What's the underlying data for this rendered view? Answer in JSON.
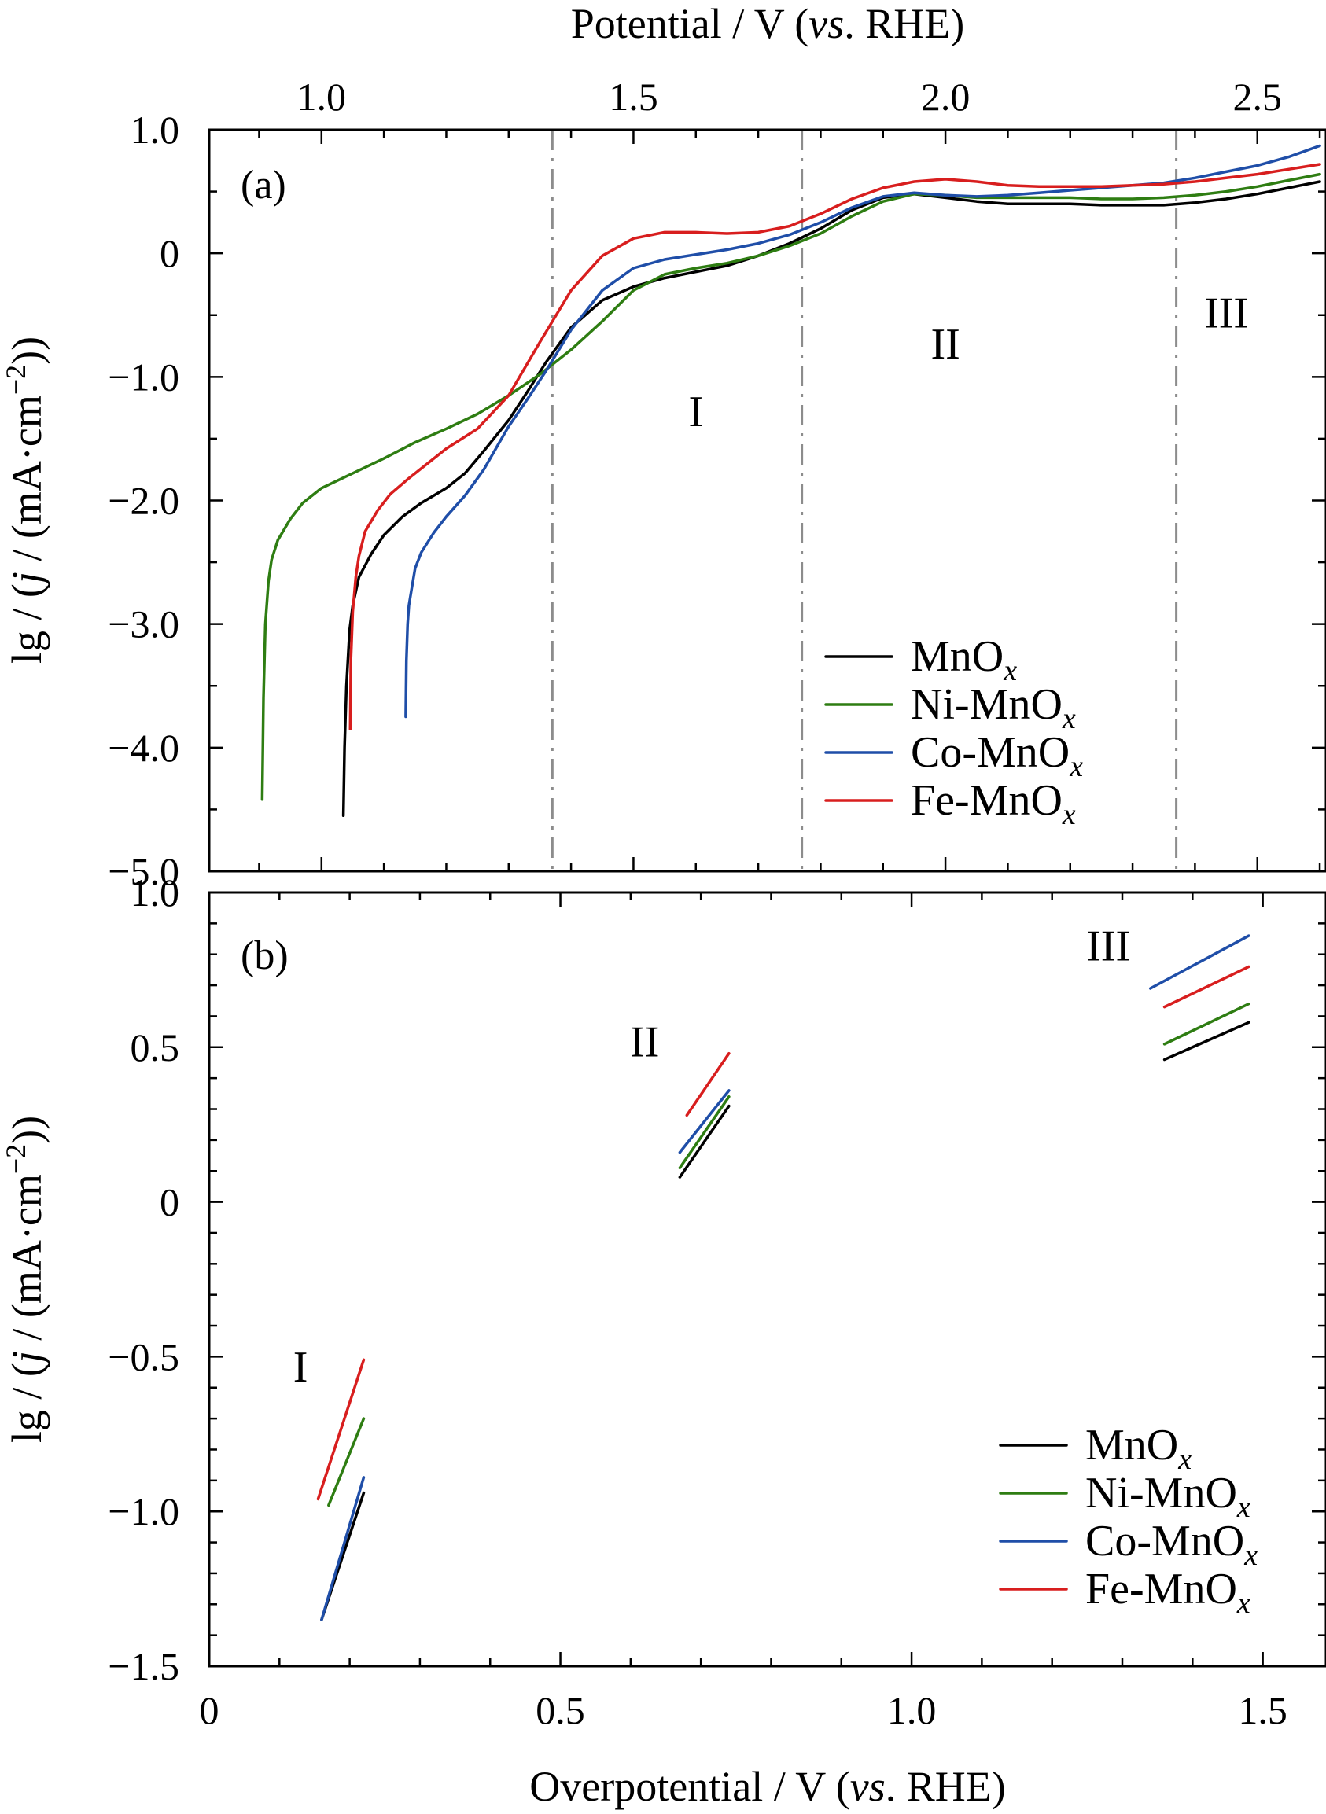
{
  "colors": {
    "MnOx": "#000000",
    "Ni-MnOx": "#2e7d12",
    "Co-MnOx": "#1f4ea8",
    "Fe-MnOx": "#d81e1e"
  },
  "chart_data": [
    {
      "panel": "(a)",
      "type": "line",
      "x_top_label_text": "Potential / V (",
      "x_top_label_italic": "vs",
      "x_top_label_tail": ". RHE)",
      "x_top_ticks": [
        "1.0",
        "1.5",
        "2.0",
        "2.5"
      ],
      "x_top_tick_values": [
        1.0,
        1.5,
        2.0,
        2.5
      ],
      "x_top_lim": [
        0.82,
        2.61
      ],
      "ylabel": "lg / (j / (mA·cm⁻²))",
      "ylim": [
        -5.0,
        1.0
      ],
      "y_ticks": [
        "1.0",
        "0",
        "−1.0",
        "−2.0",
        "−3.0",
        "−4.0",
        "−5.0"
      ],
      "y_tick_values": [
        1.0,
        0,
        -1.0,
        -2.0,
        -3.0,
        -4.0,
        -5.0
      ],
      "regions": [
        "I",
        "II",
        "III"
      ],
      "region_positions_potential": [
        [
          1.6,
          -1.4
        ],
        [
          2.0,
          -0.85
        ],
        [
          2.45,
          -0.6
        ]
      ],
      "region_boundaries_potential": [
        1.37,
        1.77,
        2.37
      ],
      "legend": [
        "MnOx",
        "Ni-MnOx",
        "Co-MnOx",
        "Fe-MnOx"
      ],
      "legend_position": "lower-right",
      "series": [
        {
          "name": "MnOx",
          "x": [
            1.035,
            1.037,
            1.04,
            1.045,
            1.05,
            1.06,
            1.08,
            1.1,
            1.13,
            1.16,
            1.2,
            1.23,
            1.26,
            1.3,
            1.33,
            1.36,
            1.4,
            1.45,
            1.5,
            1.55,
            1.6,
            1.65,
            1.7,
            1.75,
            1.8,
            1.85,
            1.9,
            1.95,
            2.0,
            2.05,
            2.1,
            2.15,
            2.2,
            2.25,
            2.3,
            2.35,
            2.4,
            2.45,
            2.5,
            2.55,
            2.6
          ],
          "y": [
            -4.55,
            -4.0,
            -3.5,
            -3.05,
            -2.85,
            -2.62,
            -2.43,
            -2.28,
            -2.13,
            -2.02,
            -1.9,
            -1.78,
            -1.6,
            -1.35,
            -1.12,
            -0.88,
            -0.6,
            -0.38,
            -0.27,
            -0.2,
            -0.15,
            -0.1,
            -0.02,
            0.08,
            0.2,
            0.35,
            0.45,
            0.48,
            0.45,
            0.42,
            0.4,
            0.4,
            0.4,
            0.39,
            0.39,
            0.39,
            0.41,
            0.44,
            0.48,
            0.53,
            0.58
          ]
        },
        {
          "name": "Ni-MnOx",
          "x": [
            0.905,
            0.907,
            0.91,
            0.915,
            0.92,
            0.93,
            0.95,
            0.97,
            1.0,
            1.05,
            1.1,
            1.15,
            1.2,
            1.25,
            1.3,
            1.35,
            1.4,
            1.45,
            1.5,
            1.55,
            1.6,
            1.65,
            1.7,
            1.75,
            1.8,
            1.85,
            1.9,
            1.95,
            2.0,
            2.05,
            2.1,
            2.15,
            2.2,
            2.25,
            2.3,
            2.35,
            2.4,
            2.45,
            2.5,
            2.55,
            2.6
          ],
          "y": [
            -4.42,
            -3.6,
            -3.0,
            -2.65,
            -2.48,
            -2.32,
            -2.15,
            -2.02,
            -1.9,
            -1.78,
            -1.66,
            -1.53,
            -1.42,
            -1.3,
            -1.15,
            -0.98,
            -0.78,
            -0.55,
            -0.3,
            -0.17,
            -0.12,
            -0.08,
            -0.02,
            0.06,
            0.16,
            0.3,
            0.42,
            0.48,
            0.47,
            0.45,
            0.45,
            0.45,
            0.45,
            0.44,
            0.44,
            0.45,
            0.47,
            0.5,
            0.54,
            0.59,
            0.64
          ]
        },
        {
          "name": "Co-MnOx",
          "x": [
            1.135,
            1.136,
            1.138,
            1.14,
            1.145,
            1.15,
            1.16,
            1.18,
            1.2,
            1.23,
            1.26,
            1.3,
            1.33,
            1.36,
            1.4,
            1.45,
            1.5,
            1.55,
            1.6,
            1.65,
            1.7,
            1.75,
            1.8,
            1.85,
            1.9,
            1.95,
            2.0,
            2.05,
            2.1,
            2.15,
            2.2,
            2.25,
            2.3,
            2.35,
            2.4,
            2.45,
            2.5,
            2.55,
            2.6
          ],
          "y": [
            -3.75,
            -3.3,
            -3.0,
            -2.85,
            -2.7,
            -2.55,
            -2.42,
            -2.26,
            -2.13,
            -1.96,
            -1.75,
            -1.4,
            -1.18,
            -0.95,
            -0.62,
            -0.3,
            -0.12,
            -0.05,
            -0.01,
            0.03,
            0.08,
            0.15,
            0.25,
            0.37,
            0.46,
            0.49,
            0.47,
            0.46,
            0.47,
            0.49,
            0.51,
            0.53,
            0.55,
            0.57,
            0.61,
            0.66,
            0.71,
            0.78,
            0.87
          ]
        },
        {
          "name": "Fe-MnOx",
          "x": [
            1.046,
            1.047,
            1.05,
            1.055,
            1.06,
            1.07,
            1.09,
            1.11,
            1.14,
            1.17,
            1.2,
            1.25,
            1.3,
            1.35,
            1.4,
            1.45,
            1.5,
            1.55,
            1.6,
            1.65,
            1.7,
            1.75,
            1.8,
            1.85,
            1.9,
            1.95,
            2.0,
            2.05,
            2.1,
            2.15,
            2.2,
            2.25,
            2.3,
            2.35,
            2.4,
            2.45,
            2.5,
            2.55,
            2.6
          ],
          "y": [
            -3.85,
            -3.3,
            -2.9,
            -2.62,
            -2.45,
            -2.25,
            -2.08,
            -1.95,
            -1.82,
            -1.7,
            -1.58,
            -1.42,
            -1.15,
            -0.72,
            -0.3,
            -0.02,
            0.12,
            0.17,
            0.17,
            0.16,
            0.17,
            0.22,
            0.32,
            0.44,
            0.53,
            0.58,
            0.6,
            0.58,
            0.55,
            0.54,
            0.54,
            0.54,
            0.55,
            0.56,
            0.58,
            0.61,
            0.64,
            0.68,
            0.72
          ]
        }
      ]
    },
    {
      "panel": "(b)",
      "type": "line",
      "xlabel_text": "Overpotential / V (",
      "xlabel_italic": "vs",
      "xlabel_tail": ". RHE)",
      "x_ticks": [
        "0",
        "0.5",
        "1.0",
        "1.5"
      ],
      "x_tick_values": [
        0,
        0.5,
        1.0,
        1.5
      ],
      "xlim": [
        0,
        1.59
      ],
      "ylabel": "lg / (j / (mA·cm⁻²))",
      "ylim": [
        -1.5,
        1.0
      ],
      "y_ticks": [
        "1.0",
        "0.5",
        "0",
        "−0.5",
        "−1.0",
        "−1.5"
      ],
      "y_tick_values": [
        1.0,
        0.5,
        0,
        -0.5,
        -1.0,
        -1.5
      ],
      "regions": [
        "I",
        "II",
        "III"
      ],
      "region_positions_overpotential": [
        [
          0.13,
          -0.58
        ],
        [
          0.62,
          0.47
        ],
        [
          1.28,
          0.78
        ]
      ],
      "legend": [
        "MnOx",
        "Ni-MnOx",
        "Co-MnOx",
        "Fe-MnOx"
      ],
      "legend_position": "lower-right",
      "series": [
        {
          "name": "MnOx",
          "segments": [
            {
              "x": [
                0.16,
                0.22
              ],
              "y": [
                -1.35,
                -0.94
              ]
            },
            {
              "x": [
                0.67,
                0.74
              ],
              "y": [
                0.08,
                0.31
              ]
            },
            {
              "x": [
                1.36,
                1.48
              ],
              "y": [
                0.46,
                0.58
              ]
            }
          ]
        },
        {
          "name": "Ni-MnOx",
          "segments": [
            {
              "x": [
                0.17,
                0.22
              ],
              "y": [
                -0.98,
                -0.7
              ]
            },
            {
              "x": [
                0.67,
                0.74
              ],
              "y": [
                0.11,
                0.34
              ]
            },
            {
              "x": [
                1.36,
                1.48
              ],
              "y": [
                0.51,
                0.64
              ]
            }
          ]
        },
        {
          "name": "Co-MnOx",
          "segments": [
            {
              "x": [
                0.16,
                0.22
              ],
              "y": [
                -1.35,
                -0.89
              ]
            },
            {
              "x": [
                0.67,
                0.74
              ],
              "y": [
                0.16,
                0.36
              ]
            },
            {
              "x": [
                1.34,
                1.48
              ],
              "y": [
                0.69,
                0.86
              ]
            }
          ]
        },
        {
          "name": "Fe-MnOx",
          "segments": [
            {
              "x": [
                0.155,
                0.22
              ],
              "y": [
                -0.96,
                -0.51
              ]
            },
            {
              "x": [
                0.68,
                0.74
              ],
              "y": [
                0.28,
                0.48
              ]
            },
            {
              "x": [
                1.36,
                1.48
              ],
              "y": [
                0.63,
                0.76
              ]
            }
          ]
        }
      ]
    }
  ]
}
